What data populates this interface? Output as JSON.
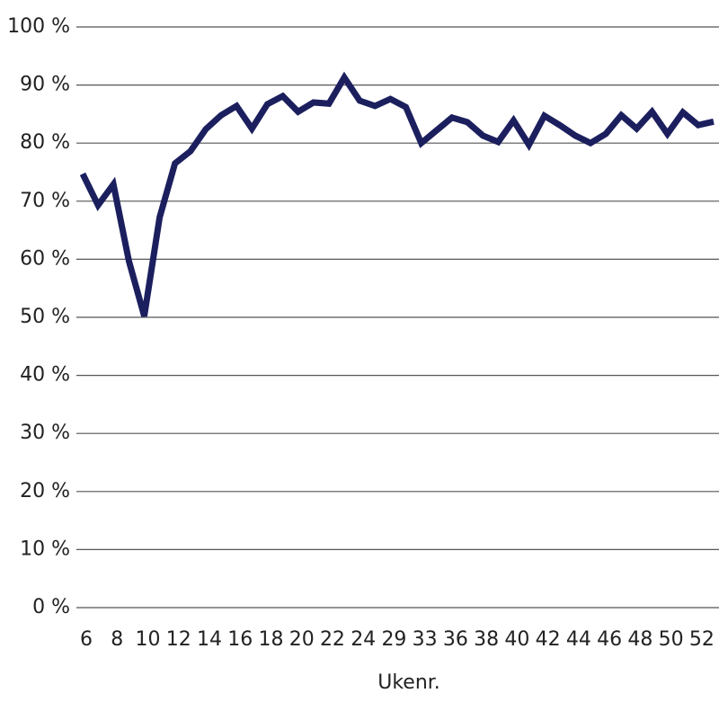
{
  "chart_data": {
    "type": "line",
    "x_label": "Ukenr.",
    "categories": [
      "6",
      null,
      "8",
      null,
      "10",
      null,
      "12",
      null,
      "14",
      null,
      "16",
      null,
      "18",
      null,
      "20",
      null,
      "22",
      null,
      "24",
      null,
      "29",
      null,
      "33",
      null,
      "36",
      null,
      "38",
      null,
      "40",
      null,
      "42",
      null,
      "44",
      null,
      "46",
      null,
      "48",
      null,
      "50",
      null,
      "52",
      null
    ],
    "series": [
      {
        "color": "#1c1f5e",
        "values": [
          74.7,
          69.3,
          72.9,
          59.7,
          50.2,
          67.2,
          76.5,
          78.6,
          82.4,
          84.8,
          86.4,
          82.5,
          86.7,
          88.1,
          85.4,
          87.0,
          86.8,
          91.3,
          87.3,
          86.4,
          87.6,
          86.2,
          80.0,
          82.2,
          84.4,
          83.6,
          81.3,
          80.2,
          83.9,
          79.7,
          84.7,
          83.1,
          81.3,
          80.0,
          81.6,
          84.8,
          82.5,
          85.4,
          81.6,
          85.3,
          83.1,
          83.7
        ]
      }
    ],
    "ylim": [
      0,
      100
    ],
    "yticks": [
      {
        "value": 0,
        "label": "0 %"
      },
      {
        "value": 10,
        "label": "10 %"
      },
      {
        "value": 20,
        "label": "20 %"
      },
      {
        "value": 30,
        "label": "30 %"
      },
      {
        "value": 40,
        "label": "40 %"
      },
      {
        "value": 50,
        "label": "50 %"
      },
      {
        "value": 60,
        "label": "60 %"
      },
      {
        "value": 70,
        "label": "70 %"
      },
      {
        "value": 80,
        "label": "80 %"
      },
      {
        "value": 90,
        "label": "90 %"
      },
      {
        "value": 100,
        "label": "100 %"
      }
    ],
    "grid": true
  }
}
